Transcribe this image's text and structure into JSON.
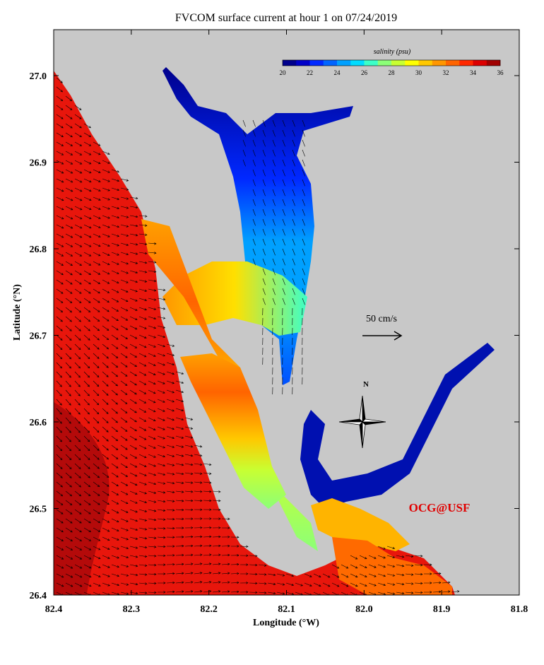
{
  "title": "FVCOM surface current at hour 1 on 07/24/2019",
  "colorbar": {
    "label": "salinity (psu)",
    "ticks": [
      "20",
      "22",
      "24",
      "26",
      "28",
      "30",
      "32",
      "34",
      "36"
    ],
    "colors": [
      "#00008c",
      "#0000c8",
      "#0028ff",
      "#0064ff",
      "#00a0ff",
      "#00dcff",
      "#3cffc8",
      "#8cff78",
      "#c8ff32",
      "#ffff00",
      "#ffc800",
      "#ff9600",
      "#ff6400",
      "#ff2800",
      "#dc0000",
      "#a00000"
    ]
  },
  "x_axis": {
    "label": "Longitude (°W)",
    "ticks": [
      "82.4",
      "82.3",
      "82.2",
      "82.1",
      "82.0",
      "81.9",
      "81.8"
    ]
  },
  "y_axis": {
    "label": "Latitude (°N)",
    "ticks": [
      "26.4",
      "26.5",
      "26.6",
      "26.7",
      "26.8",
      "26.9",
      "27.0"
    ]
  },
  "scale_arrow": "50 cm/s",
  "north": "N",
  "credit": "OCG@USF"
}
